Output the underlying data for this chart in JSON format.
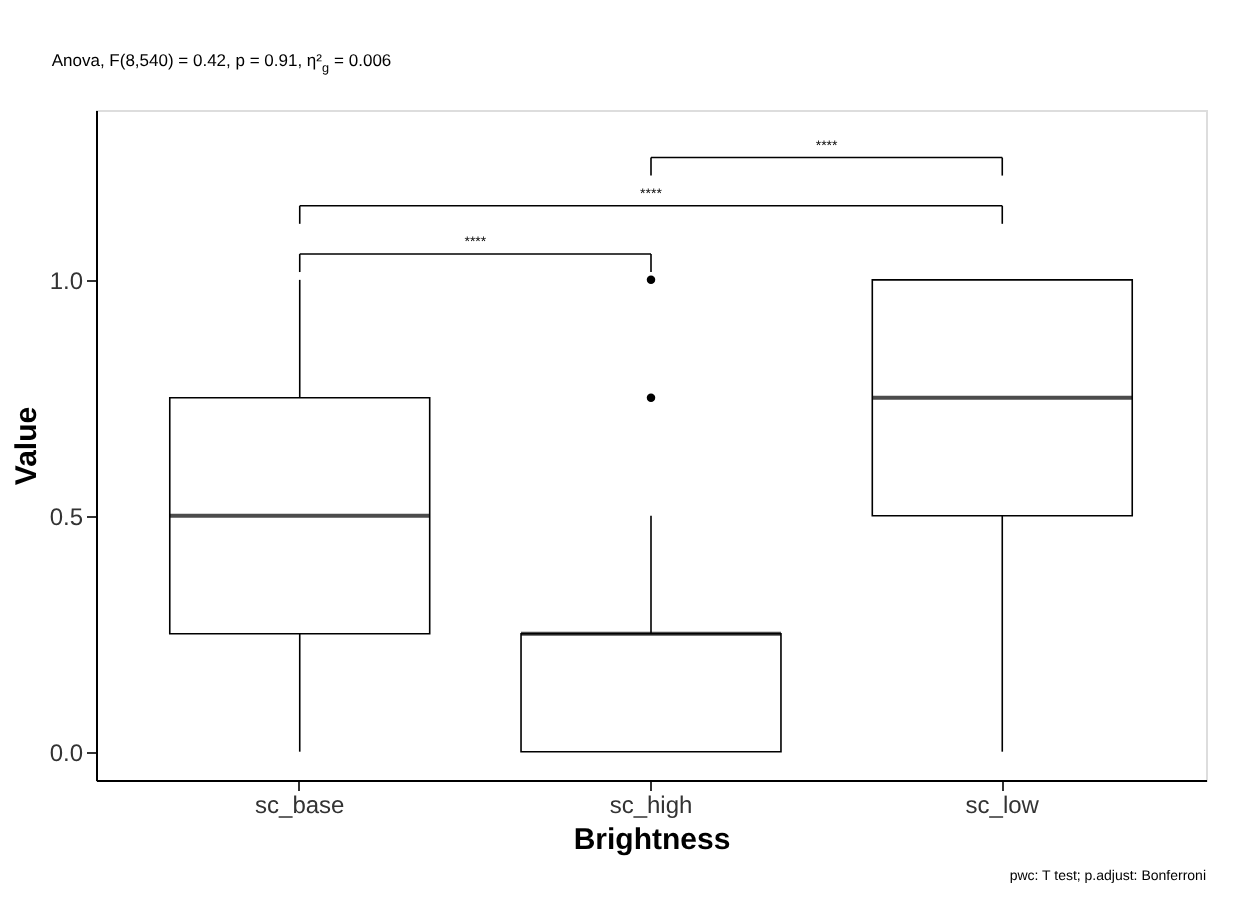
{
  "chart_data": {
    "type": "box",
    "title": "Anova, F(8,540) = 0.42, p = 0.91, η²$_{g}$ = 0.006",
    "xlabel": "Brightness",
    "ylabel": "Value",
    "categories": [
      "sc_base",
      "sc_high",
      "sc_low"
    ],
    "boxes": [
      {
        "low": 0,
        "q1": 0.25,
        "median": 0.5,
        "q3": 0.75,
        "high": 1.0
      },
      {
        "low": 0,
        "q1": 0,
        "median": 0.25,
        "q3": 0.25,
        "high": 0.5,
        "outliers": [
          0.75,
          1.0
        ]
      },
      {
        "low": 0,
        "q1": 0.5,
        "median": 0.75,
        "q3": 1.0,
        "high": 1.0
      }
    ],
    "ylim": [
      -0.06,
      1.36
    ],
    "yticks": [
      {
        "value": 0,
        "label": "0.0"
      },
      {
        "value": 0.5,
        "label": "0.5"
      },
      {
        "value": 1,
        "label": "1.0"
      }
    ],
    "grid": false,
    "annotations": [
      "****",
      "****",
      "****",
      "pwc: T test; p.adjust: Bonferroni"
    ]
  }
}
